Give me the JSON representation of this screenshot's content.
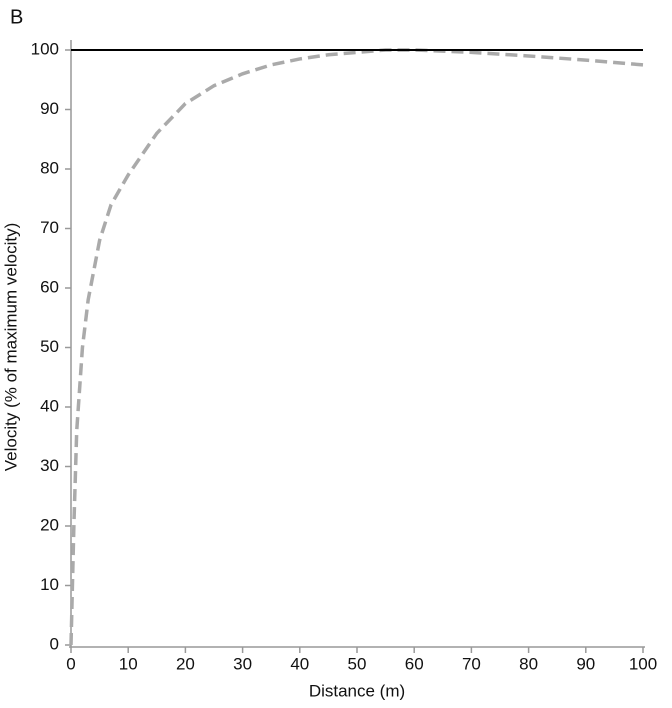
{
  "chart_data": {
    "type": "line",
    "panel_label": "B",
    "xlabel": "Distance (m)",
    "ylabel": "Velocity (% of maximum velocity)",
    "xlim": [
      0,
      100
    ],
    "ylim": [
      0,
      100
    ],
    "xticks": [
      0,
      10,
      20,
      30,
      40,
      50,
      60,
      70,
      80,
      90,
      100
    ],
    "yticks": [
      0,
      10,
      20,
      30,
      40,
      50,
      60,
      70,
      80,
      90,
      100
    ],
    "series": [
      {
        "color": "#aaaaaa",
        "dashed": true,
        "x": [
          0,
          0.5,
          1,
          2,
          3,
          5,
          7,
          10,
          15,
          20,
          25,
          30,
          35,
          40,
          45,
          50,
          55,
          60,
          70,
          80,
          90,
          100
        ],
        "values": [
          0,
          20,
          36,
          50,
          58,
          68,
          74,
          79,
          86,
          91,
          94,
          96,
          97.5,
          98.5,
          99.2,
          99.6,
          100,
          100,
          99.6,
          99,
          98.3,
          97.5
        ]
      },
      {
        "color": "#000000",
        "dashed": false,
        "x": [
          0,
          100
        ],
        "values": [
          100,
          100
        ]
      }
    ]
  }
}
